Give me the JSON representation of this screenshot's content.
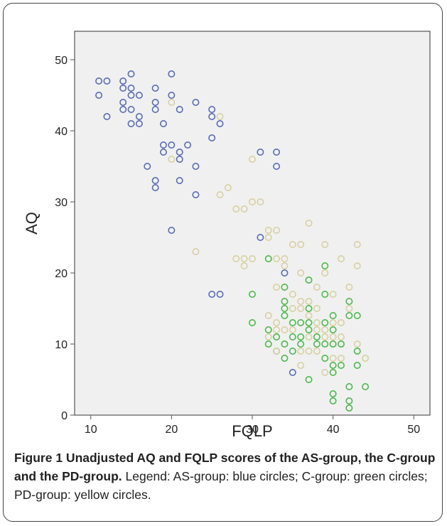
{
  "figure": {
    "caption_title": "Figure 1 Unadjusted AQ and FQLP scores of the AS-group, the C-group and the PD-group.",
    "caption_legend": "Legend: AS-group: blue circles; C-group: green circles; PD-group: yellow circles."
  },
  "chart_data": {
    "type": "scatter",
    "xlabel": "FQLP",
    "ylabel": "AQ",
    "xlim": [
      8,
      52
    ],
    "ylim": [
      0,
      54
    ],
    "xticks": [
      10,
      20,
      30,
      40,
      50
    ],
    "yticks": [
      0,
      10,
      20,
      30,
      40,
      50
    ],
    "grid": false,
    "series": [
      {
        "color": "#5a6bb4",
        "points": [
          [
            11,
            47
          ],
          [
            12,
            47
          ],
          [
            11,
            45
          ],
          [
            12,
            42
          ],
          [
            14,
            47
          ],
          [
            14,
            46
          ],
          [
            15,
            48
          ],
          [
            15,
            46
          ],
          [
            15,
            45
          ],
          [
            14,
            44
          ],
          [
            14,
            43
          ],
          [
            15,
            43
          ],
          [
            16,
            45
          ],
          [
            15,
            41
          ],
          [
            16,
            42
          ],
          [
            16,
            41
          ],
          [
            18,
            46
          ],
          [
            18,
            44
          ],
          [
            18,
            43
          ],
          [
            19,
            41
          ],
          [
            20,
            48
          ],
          [
            20,
            45
          ],
          [
            21,
            43
          ],
          [
            23,
            44
          ],
          [
            25,
            43
          ],
          [
            25,
            42
          ],
          [
            25,
            39
          ],
          [
            26,
            41
          ],
          [
            19,
            38
          ],
          [
            20,
            38
          ],
          [
            19,
            37
          ],
          [
            21,
            37
          ],
          [
            21,
            36
          ],
          [
            22,
            38
          ],
          [
            17,
            35
          ],
          [
            23,
            35
          ],
          [
            18,
            33
          ],
          [
            18,
            32
          ],
          [
            21,
            33
          ],
          [
            23,
            31
          ],
          [
            20,
            26
          ],
          [
            25,
            17
          ],
          [
            26,
            17
          ],
          [
            31,
            37
          ],
          [
            33,
            37
          ],
          [
            33,
            35
          ],
          [
            31,
            25
          ],
          [
            34,
            20
          ],
          [
            35,
            6
          ]
        ]
      },
      {
        "color": "#4db84d",
        "points": [
          [
            32,
            22
          ],
          [
            34,
            18
          ],
          [
            37,
            19
          ],
          [
            39,
            21
          ],
          [
            39,
            17
          ],
          [
            42,
            16
          ],
          [
            30,
            17
          ],
          [
            34,
            16
          ],
          [
            34,
            15
          ],
          [
            34,
            14
          ],
          [
            36,
            13
          ],
          [
            37,
            15
          ],
          [
            35,
            13
          ],
          [
            40,
            14
          ],
          [
            30,
            13
          ],
          [
            32,
            12
          ],
          [
            33,
            11
          ],
          [
            35,
            11
          ],
          [
            36,
            11
          ],
          [
            37,
            12
          ],
          [
            38,
            11
          ],
          [
            39,
            10
          ],
          [
            40,
            12
          ],
          [
            41,
            10
          ],
          [
            42,
            14
          ],
          [
            43,
            14
          ],
          [
            32,
            10
          ],
          [
            34,
            10
          ],
          [
            36,
            10
          ],
          [
            38,
            10
          ],
          [
            40,
            10
          ],
          [
            35,
            9
          ],
          [
            41,
            7
          ],
          [
            39,
            8
          ],
          [
            40,
            7
          ],
          [
            43,
            9
          ],
          [
            43,
            7
          ],
          [
            37,
            5
          ],
          [
            40,
            6
          ],
          [
            42,
            4
          ],
          [
            44,
            4
          ],
          [
            40,
            3
          ],
          [
            40,
            2
          ],
          [
            42,
            2
          ],
          [
            42,
            1
          ],
          [
            34,
            8
          ],
          [
            33,
            9
          ],
          [
            37,
            13
          ],
          [
            39,
            13
          ]
        ]
      },
      {
        "color": "#d8d0a2",
        "points": [
          [
            20,
            44
          ],
          [
            26,
            42
          ],
          [
            20,
            36
          ],
          [
            26,
            31
          ],
          [
            27,
            32
          ],
          [
            28,
            29
          ],
          [
            29,
            29
          ],
          [
            30,
            30
          ],
          [
            31,
            30
          ],
          [
            30,
            36
          ],
          [
            32,
            26
          ],
          [
            32,
            25
          ],
          [
            33,
            26
          ],
          [
            23,
            23
          ],
          [
            28,
            22
          ],
          [
            29,
            22
          ],
          [
            30,
            22
          ],
          [
            29,
            21
          ],
          [
            33,
            22
          ],
          [
            34,
            22
          ],
          [
            35,
            24
          ],
          [
            36,
            24
          ],
          [
            37,
            27
          ],
          [
            39,
            24
          ],
          [
            41,
            22
          ],
          [
            43,
            24
          ],
          [
            43,
            21
          ],
          [
            34,
            21
          ],
          [
            36,
            20
          ],
          [
            38,
            18
          ],
          [
            39,
            20
          ],
          [
            42,
            18
          ],
          [
            42,
            15
          ],
          [
            33,
            18
          ],
          [
            35,
            17
          ],
          [
            36,
            16
          ],
          [
            37,
            16
          ],
          [
            38,
            15
          ],
          [
            40,
            17
          ],
          [
            32,
            14
          ],
          [
            33,
            13
          ],
          [
            35,
            15
          ],
          [
            36,
            15
          ],
          [
            37,
            14
          ],
          [
            38,
            13
          ],
          [
            39,
            12
          ],
          [
            40,
            13
          ],
          [
            41,
            13
          ],
          [
            33,
            12
          ],
          [
            34,
            12
          ],
          [
            35,
            12
          ],
          [
            37,
            11
          ],
          [
            38,
            12
          ],
          [
            41,
            11
          ],
          [
            32,
            11
          ],
          [
            39,
            11
          ],
          [
            40,
            11
          ],
          [
            36,
            9
          ],
          [
            37,
            9
          ],
          [
            38,
            9
          ],
          [
            41,
            8
          ],
          [
            43,
            10
          ],
          [
            44,
            8
          ],
          [
            33,
            9
          ],
          [
            36,
            7
          ],
          [
            39,
            6
          ],
          [
            40,
            8
          ]
        ]
      }
    ]
  }
}
